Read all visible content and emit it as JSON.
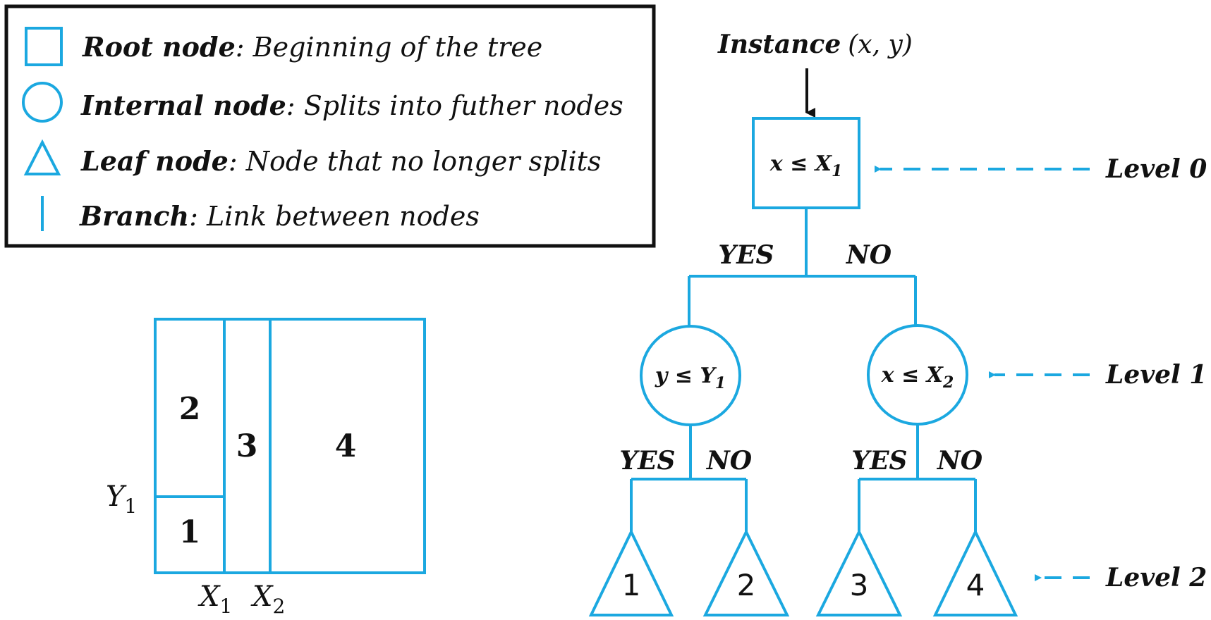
{
  "legend": {
    "root_label": "Root node",
    "root_desc": "Beginning of the tree",
    "internal_label": "Internal node",
    "internal_desc": "Splits into futher nodes",
    "leaf_label": "Leaf node",
    "leaf_desc": "Node that no longer splits",
    "branch_label": "Branch",
    "branch_desc": "Link between nodes"
  },
  "tree": {
    "instance_label": "Instance",
    "instance_args": "(x, y)",
    "root_condition": "x ≤ X",
    "root_sub": "1",
    "left_condition": "y ≤ Y",
    "left_sub": "1",
    "right_condition": "x ≤ X",
    "right_sub": "2",
    "yes": "YES",
    "no": "NO",
    "leaves": [
      "1",
      "2",
      "3",
      "4"
    ],
    "levels": [
      "Level 0",
      "Level 1",
      "Level 2"
    ]
  },
  "partition": {
    "regions": [
      "1",
      "2",
      "3",
      "4"
    ],
    "y_label": "Y",
    "y_sub": "1",
    "x1_label": "X",
    "x1_sub": "1",
    "x2_label": "X",
    "x2_sub": "2"
  },
  "colors": {
    "accent": "#1ba8e0",
    "text": "#111111"
  }
}
